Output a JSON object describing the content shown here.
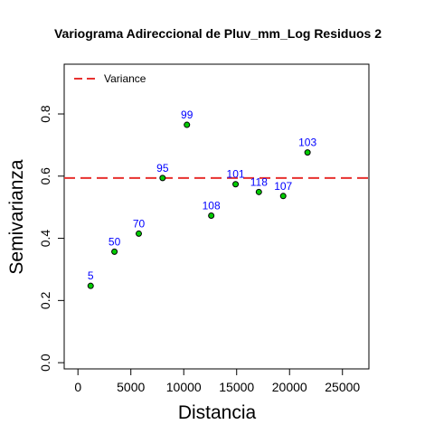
{
  "chart_data": {
    "type": "scatter",
    "title": "Variograma Adireccional de Pluv_mm_Log Residuos 2",
    "xlabel": "Distancia",
    "ylabel": "Semivarianza",
    "xlim": [
      -1300,
      27500
    ],
    "ylim": [
      -0.02,
      0.96
    ],
    "x_ticks": [
      0,
      5000,
      10000,
      15000,
      20000,
      25000
    ],
    "x_tick_labels": [
      "0",
      "5000",
      "10000",
      "15000",
      "20000",
      "25000"
    ],
    "y_ticks": [
      0.0,
      0.2,
      0.4,
      0.6,
      0.8
    ],
    "y_tick_labels": [
      "0.0",
      "0.2",
      "0.4",
      "0.6",
      "0.8"
    ],
    "grid": false,
    "legend_position": "top-left",
    "points": [
      {
        "x": 1200,
        "y": 0.247,
        "label": "5"
      },
      {
        "x": 3450,
        "y": 0.357,
        "label": "50"
      },
      {
        "x": 5750,
        "y": 0.415,
        "label": "70"
      },
      {
        "x": 8000,
        "y": 0.594,
        "label": "95"
      },
      {
        "x": 10300,
        "y": 0.765,
        "label": "99"
      },
      {
        "x": 12600,
        "y": 0.473,
        "label": "108"
      },
      {
        "x": 14900,
        "y": 0.574,
        "label": "101"
      },
      {
        "x": 17100,
        "y": 0.549,
        "label": "118"
      },
      {
        "x": 19400,
        "y": 0.536,
        "label": "107"
      },
      {
        "x": 21700,
        "y": 0.676,
        "label": "103"
      }
    ],
    "reference_line": {
      "y": 0.594,
      "label": "Variance"
    },
    "colors": {
      "point_fill": "#00cc00",
      "point_stroke": "#000000",
      "point_label": "#0000ff",
      "reference_line": "#e8312f"
    }
  }
}
